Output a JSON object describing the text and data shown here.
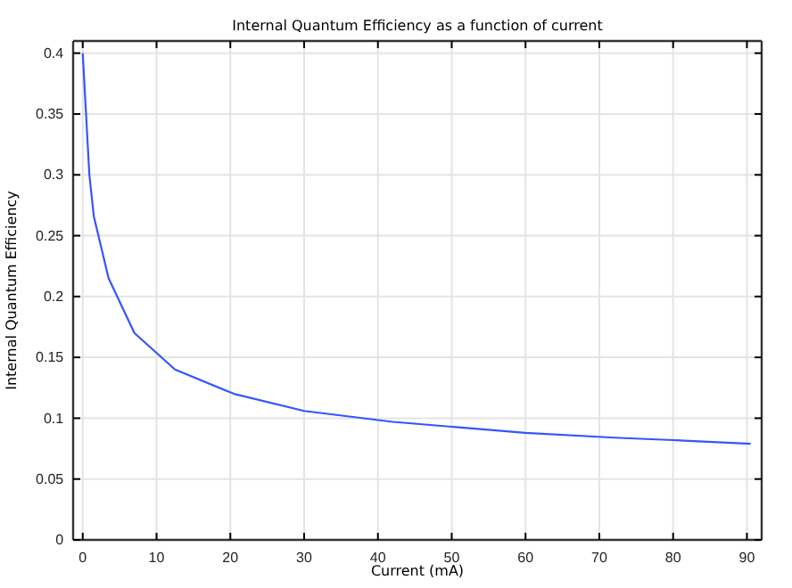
{
  "chart_data": {
    "type": "line",
    "title": "Internal Quantum Efficiency as a function of current",
    "xlabel": "Current (mA)",
    "ylabel": "Internal Quantum Efficiency",
    "x": [
      0,
      0.9,
      1.5,
      3.5,
      7,
      12.5,
      20.5,
      30,
      42,
      50,
      60,
      72,
      80,
      90.5
    ],
    "series": [
      {
        "color": "#3355ff",
        "values": [
          0.4,
          0.3,
          0.266,
          0.215,
          0.17,
          0.14,
          0.12,
          0.106,
          0.097,
          0.093,
          0.088,
          0.084,
          0.082,
          0.079
        ]
      }
    ],
    "xlim": [
      -1.3,
      92
    ],
    "ylim": [
      0,
      0.41
    ],
    "xticks": [
      0,
      10,
      20,
      30,
      40,
      50,
      60,
      70,
      80,
      90
    ],
    "yticks": [
      0,
      0.05,
      0.1,
      0.15,
      0.2,
      0.25,
      0.3,
      0.35,
      0.4
    ],
    "grid": true,
    "marker": "none",
    "line_style": "solid"
  }
}
